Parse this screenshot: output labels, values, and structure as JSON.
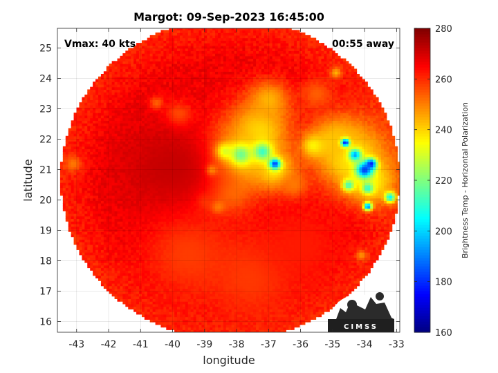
{
  "chart_data": {
    "type": "heatmap",
    "title": "Margot: 09-Sep-2023 16:45:00",
    "annotations": {
      "vmax": "Vmax: 40 kts",
      "time_away": "00:55 away"
    },
    "xlabel": "longitude",
    "ylabel": "latitude",
    "xlim": [
      -43.6,
      -32.9
    ],
    "ylim": [
      15.65,
      25.65
    ],
    "xticks": [
      -43,
      -42,
      -41,
      -40,
      -39,
      -38,
      -37,
      -36,
      -35,
      -34,
      -33
    ],
    "xtick_labels": [
      "-43",
      "-42",
      "-41",
      "-40",
      "-39",
      "-38",
      "-37",
      "-36",
      "-35",
      "-34",
      "-33"
    ],
    "yticks": [
      16,
      17,
      18,
      19,
      20,
      21,
      22,
      23,
      24,
      25
    ],
    "ytick_labels": [
      "16",
      "17",
      "18",
      "19",
      "20",
      "21",
      "22",
      "23",
      "24",
      "25"
    ],
    "grid": true,
    "colorbar": {
      "label": "Brightness Temp - Horizontal Polarization",
      "range": [
        160,
        280
      ],
      "ticks": [
        160,
        180,
        200,
        220,
        240,
        260,
        280
      ],
      "tick_labels": [
        "160",
        "180",
        "200",
        "220",
        "240",
        "260",
        "280"
      ],
      "colormap": "jet"
    },
    "swath": {
      "shape": "circle",
      "center": [
        -38.2,
        20.7
      ],
      "radius_deg": 5.3,
      "background_value": 266
    },
    "features": [
      {
        "lon": -38.0,
        "lat": 21.4,
        "value": 232,
        "spread": 0.75
      },
      {
        "lon": -37.3,
        "lat": 22.3,
        "value": 238,
        "spread": 0.65
      },
      {
        "lon": -37.0,
        "lat": 23.3,
        "value": 244,
        "spread": 0.45
      },
      {
        "lon": -36.8,
        "lat": 21.0,
        "value": 236,
        "spread": 0.45
      },
      {
        "lon": -38.3,
        "lat": 20.3,
        "value": 246,
        "spread": 0.5
      },
      {
        "lon": -37.9,
        "lat": 21.5,
        "value": 205,
        "spread": 0.22
      },
      {
        "lon": -38.4,
        "lat": 21.6,
        "value": 208,
        "spread": 0.18
      },
      {
        "lon": -37.2,
        "lat": 21.6,
        "value": 208,
        "spread": 0.2
      },
      {
        "lon": -36.8,
        "lat": 21.2,
        "value": 178,
        "spread": 0.12
      },
      {
        "lon": -38.8,
        "lat": 21.0,
        "value": 215,
        "spread": 0.12
      },
      {
        "lon": -38.6,
        "lat": 19.8,
        "value": 238,
        "spread": 0.15
      },
      {
        "lon": -34.4,
        "lat": 21.4,
        "value": 236,
        "spread": 0.8
      },
      {
        "lon": -34.9,
        "lat": 22.0,
        "value": 242,
        "spread": 0.55
      },
      {
        "lon": -33.8,
        "lat": 20.6,
        "value": 236,
        "spread": 0.5
      },
      {
        "lon": -34.0,
        "lat": 21.0,
        "value": 182,
        "spread": 0.18
      },
      {
        "lon": -33.8,
        "lat": 21.2,
        "value": 178,
        "spread": 0.12
      },
      {
        "lon": -34.3,
        "lat": 21.5,
        "value": 194,
        "spread": 0.13
      },
      {
        "lon": -34.6,
        "lat": 21.9,
        "value": 176,
        "spread": 0.09
      },
      {
        "lon": -34.5,
        "lat": 20.5,
        "value": 212,
        "spread": 0.13
      },
      {
        "lon": -33.9,
        "lat": 20.4,
        "value": 210,
        "spread": 0.12
      },
      {
        "lon": -33.2,
        "lat": 20.1,
        "value": 205,
        "spread": 0.12
      },
      {
        "lon": -33.9,
        "lat": 19.8,
        "value": 186,
        "spread": 0.09
      },
      {
        "lon": -35.6,
        "lat": 21.8,
        "value": 236,
        "spread": 0.25
      },
      {
        "lon": -39.8,
        "lat": 22.8,
        "value": 250,
        "spread": 0.3
      },
      {
        "lon": -36.2,
        "lat": 20.5,
        "value": 250,
        "spread": 0.3
      },
      {
        "lon": -35.5,
        "lat": 23.5,
        "value": 254,
        "spread": 0.35
      },
      {
        "lon": -34.9,
        "lat": 24.2,
        "value": 244,
        "spread": 0.12
      },
      {
        "lon": -43.1,
        "lat": 21.2,
        "value": 250,
        "spread": 0.18
      },
      {
        "lon": -40.5,
        "lat": 23.2,
        "value": 250,
        "spread": 0.15
      },
      {
        "lon": -34.1,
        "lat": 18.2,
        "value": 246,
        "spread": 0.12
      },
      {
        "lon": -39.0,
        "lat": 20.0,
        "value": 248,
        "spread": 0.2
      },
      {
        "lon": -40.0,
        "lat": 21.0,
        "value": 272,
        "spread": 1.2
      },
      {
        "lon": -39.5,
        "lat": 18.2,
        "value": 258,
        "spread": 1.0
      },
      {
        "lon": -37.5,
        "lat": 17.5,
        "value": 258,
        "spread": 1.0
      },
      {
        "lon": -36.0,
        "lat": 18.5,
        "value": 262,
        "spread": 0.9
      }
    ],
    "logo_text": "CIMSS"
  }
}
